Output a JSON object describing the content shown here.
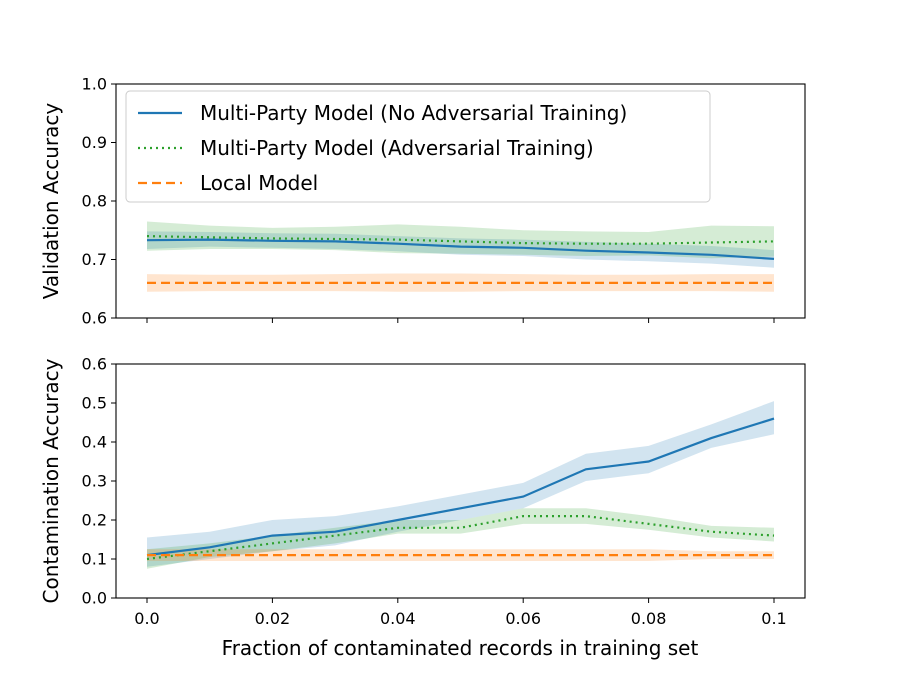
{
  "chart_data": [
    {
      "type": "line",
      "ylabel": "Validation Accuracy",
      "xlabel": "",
      "xlim": [
        0.0,
        0.1
      ],
      "ylim": [
        0.6,
        1.0
      ],
      "x_ticks": [
        "0.0",
        "0.02",
        "0.04",
        "0.06",
        "0.08",
        "0.1"
      ],
      "y_ticks": [
        "0.6",
        "0.7",
        "0.8",
        "0.9",
        "1.0"
      ],
      "x": [
        0.0,
        0.01,
        0.02,
        0.03,
        0.04,
        0.05,
        0.06,
        0.07,
        0.08,
        0.09,
        0.1
      ],
      "legend": "upper-left",
      "series": [
        {
          "name": "Multi-Party Model (No Adversarial Training)",
          "color": "#1f77b4",
          "style": "solid",
          "values": [
            0.733,
            0.734,
            0.732,
            0.731,
            0.727,
            0.722,
            0.72,
            0.715,
            0.712,
            0.708,
            0.701
          ],
          "lower": [
            0.718,
            0.722,
            0.72,
            0.718,
            0.714,
            0.708,
            0.706,
            0.7,
            0.697,
            0.693,
            0.686
          ],
          "upper": [
            0.748,
            0.747,
            0.745,
            0.744,
            0.74,
            0.736,
            0.734,
            0.73,
            0.727,
            0.723,
            0.716
          ]
        },
        {
          "name": "Multi-Party Model (Adversarial Training)",
          "color": "#2ca02c",
          "style": "dotted",
          "values": [
            0.74,
            0.738,
            0.736,
            0.735,
            0.734,
            0.731,
            0.728,
            0.727,
            0.727,
            0.729,
            0.731
          ],
          "lower": [
            0.715,
            0.718,
            0.718,
            0.716,
            0.711,
            0.71,
            0.708,
            0.706,
            0.707,
            0.702,
            0.705
          ],
          "upper": [
            0.765,
            0.758,
            0.754,
            0.756,
            0.76,
            0.756,
            0.75,
            0.748,
            0.747,
            0.758,
            0.757
          ]
        },
        {
          "name": "Local Model",
          "color": "#ff7f0e",
          "style": "dashed",
          "values": [
            0.66,
            0.66,
            0.66,
            0.66,
            0.66,
            0.66,
            0.66,
            0.66,
            0.66,
            0.66,
            0.66
          ],
          "lower": [
            0.645,
            0.646,
            0.646,
            0.646,
            0.645,
            0.645,
            0.646,
            0.646,
            0.646,
            0.646,
            0.645
          ],
          "upper": [
            0.675,
            0.674,
            0.674,
            0.675,
            0.676,
            0.676,
            0.675,
            0.674,
            0.674,
            0.675,
            0.675
          ]
        }
      ]
    },
    {
      "type": "line",
      "ylabel": "Contamination Accuracy",
      "xlabel": "Fraction of contaminated records in training set",
      "xlim": [
        0.0,
        0.1
      ],
      "ylim": [
        0.0,
        0.6
      ],
      "x_ticks": [
        "0.0",
        "0.02",
        "0.04",
        "0.06",
        "0.08",
        "0.1"
      ],
      "y_ticks": [
        "0.0",
        "0.1",
        "0.2",
        "0.3",
        "0.4",
        "0.5",
        "0.6"
      ],
      "x": [
        0.0,
        0.01,
        0.02,
        0.03,
        0.04,
        0.05,
        0.06,
        0.07,
        0.08,
        0.09,
        0.1
      ],
      "series": [
        {
          "name": "Multi-Party Model (No Adversarial Training)",
          "color": "#1f77b4",
          "style": "solid",
          "values": [
            0.11,
            0.13,
            0.16,
            0.17,
            0.2,
            0.23,
            0.26,
            0.33,
            0.35,
            0.41,
            0.46
          ],
          "lower": [
            0.08,
            0.1,
            0.12,
            0.135,
            0.17,
            0.2,
            0.23,
            0.3,
            0.32,
            0.385,
            0.42
          ],
          "upper": [
            0.155,
            0.17,
            0.2,
            0.21,
            0.235,
            0.265,
            0.295,
            0.37,
            0.39,
            0.445,
            0.505
          ]
        },
        {
          "name": "Multi-Party Model (Adversarial Training)",
          "color": "#2ca02c",
          "style": "dotted",
          "values": [
            0.1,
            0.12,
            0.14,
            0.16,
            0.18,
            0.18,
            0.21,
            0.21,
            0.19,
            0.17,
            0.16
          ],
          "lower": [
            0.075,
            0.105,
            0.12,
            0.14,
            0.165,
            0.165,
            0.19,
            0.19,
            0.175,
            0.155,
            0.145
          ],
          "upper": [
            0.125,
            0.14,
            0.16,
            0.18,
            0.2,
            0.2,
            0.23,
            0.23,
            0.21,
            0.185,
            0.18
          ]
        },
        {
          "name": "Local Model",
          "color": "#ff7f0e",
          "style": "dashed",
          "values": [
            0.11,
            0.11,
            0.11,
            0.11,
            0.11,
            0.11,
            0.11,
            0.11,
            0.11,
            0.11,
            0.11
          ],
          "lower": [
            0.095,
            0.095,
            0.095,
            0.095,
            0.095,
            0.095,
            0.095,
            0.095,
            0.095,
            0.1,
            0.1
          ],
          "upper": [
            0.125,
            0.125,
            0.125,
            0.125,
            0.125,
            0.125,
            0.125,
            0.125,
            0.125,
            0.12,
            0.12
          ]
        }
      ]
    }
  ]
}
